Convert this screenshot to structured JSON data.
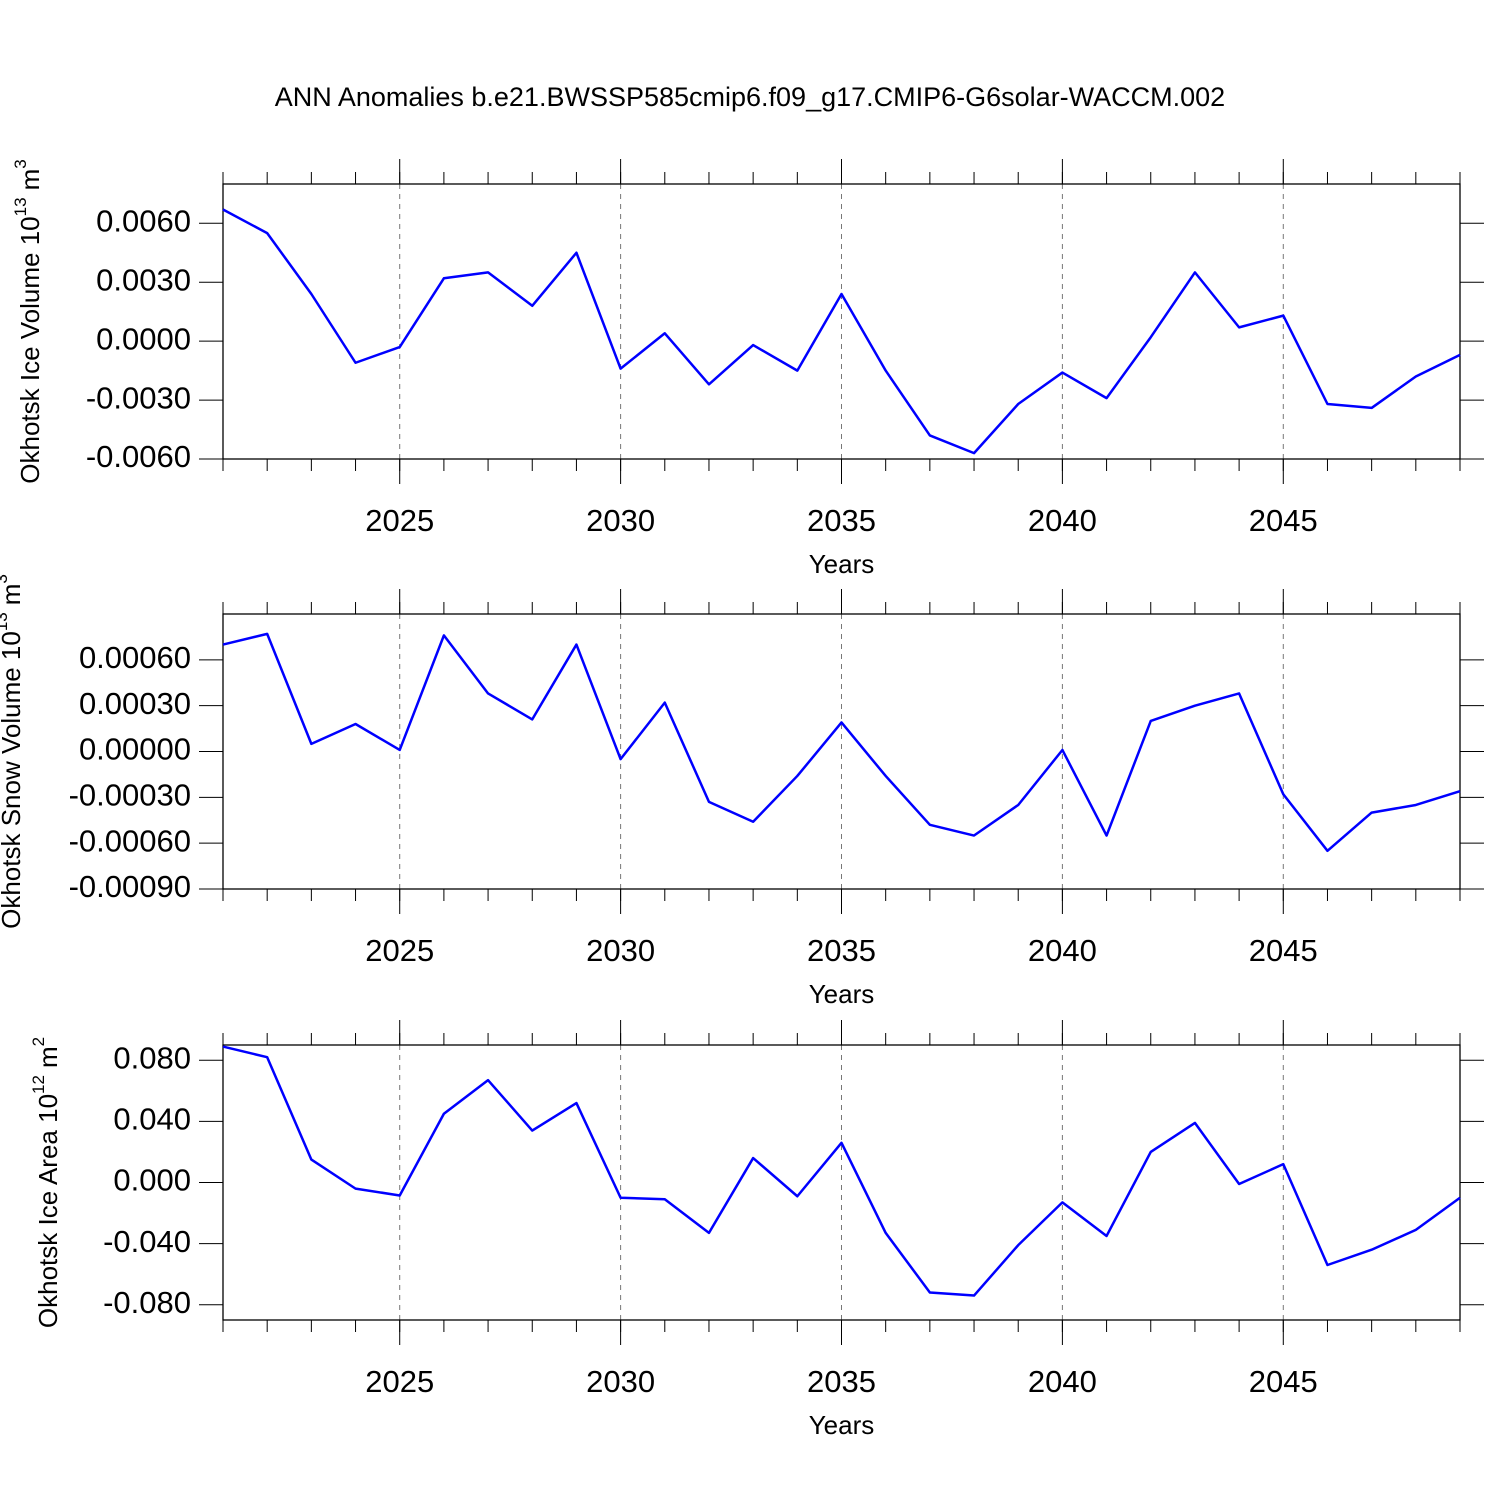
{
  "title": "ANN Anomalies b.e21.BWSSP585cmip6.f09_g17.CMIP6-G6solar-WACCM.002",
  "chart_data": [
    {
      "type": "line",
      "xlabel": "Years",
      "ylabel": {
        "text": "Okhotsk Ice Volume 10",
        "exponent": "13",
        "unit": "m",
        "unit_exponent": "3"
      },
      "x": [
        2021,
        2022,
        2023,
        2024,
        2025,
        2026,
        2027,
        2028,
        2029,
        2030,
        2031,
        2032,
        2033,
        2034,
        2035,
        2036,
        2037,
        2038,
        2039,
        2040,
        2041,
        2042,
        2043,
        2044,
        2045,
        2046,
        2047,
        2048,
        2049
      ],
      "series": [
        {
          "color": "#0000ff",
          "values": [
            0.0067,
            0.0055,
            0.0024,
            -0.0011,
            -0.0003,
            0.0032,
            0.0035,
            0.0018,
            0.0045,
            -0.0014,
            0.0004,
            -0.0022,
            -0.0002,
            -0.0015,
            0.0024,
            -0.0015,
            -0.0048,
            -0.0057,
            -0.0032,
            -0.0016,
            -0.0029,
            0.0002,
            0.0035,
            0.0007,
            0.0013,
            -0.0032,
            -0.0034,
            -0.0018,
            -0.0007
          ]
        }
      ],
      "xlim": [
        2021,
        2049
      ],
      "xticks": [
        2025,
        2030,
        2035,
        2040,
        2045
      ],
      "xgrid": true,
      "ylim": [
        -0.006,
        0.008
      ],
      "yticks": [
        {
          "value": 0.006,
          "label": "0.0060"
        },
        {
          "value": 0.003,
          "label": "0.0030"
        },
        {
          "value": 0,
          "label": "0.0000"
        },
        {
          "value": -0.003,
          "label": "-0.0030"
        },
        {
          "value": -0.006,
          "label": "-0.0060"
        }
      ]
    },
    {
      "type": "line",
      "xlabel": "Years",
      "ylabel": {
        "text": "Okhotsk Snow Volume 10",
        "exponent": "13",
        "unit": "m",
        "unit_exponent": "3"
      },
      "x": [
        2021,
        2022,
        2023,
        2024,
        2025,
        2026,
        2027,
        2028,
        2029,
        2030,
        2031,
        2032,
        2033,
        2034,
        2035,
        2036,
        2037,
        2038,
        2039,
        2040,
        2041,
        2042,
        2043,
        2044,
        2045,
        2046,
        2047,
        2048,
        2049
      ],
      "series": [
        {
          "color": "#0000ff",
          "values": [
            0.0007,
            0.00077,
            5e-05,
            0.00018,
            1e-05,
            0.00076,
            0.00038,
            0.00021,
            0.0007,
            -5e-05,
            0.00032,
            -0.00033,
            -0.00046,
            -0.00016,
            0.00019,
            -0.00016,
            -0.00048,
            -0.00055,
            -0.00035,
            1e-05,
            -0.00055,
            0.0002,
            0.0003,
            0.00038,
            -0.00028,
            -0.00065,
            -0.0004,
            -0.00035,
            -0.00026
          ]
        }
      ],
      "xlim": [
        2021,
        2049
      ],
      "xticks": [
        2025,
        2030,
        2035,
        2040,
        2045
      ],
      "xgrid": true,
      "ylim": [
        -0.0009,
        0.0009
      ],
      "yticks": [
        {
          "value": 0.0006,
          "label": "0.00060"
        },
        {
          "value": 0.0003,
          "label": "0.00030"
        },
        {
          "value": 0,
          "label": "0.00000"
        },
        {
          "value": -0.0003,
          "label": "-0.00030"
        },
        {
          "value": -0.0006,
          "label": "-0.00060"
        },
        {
          "value": -0.0009,
          "label": "-0.00090"
        }
      ]
    },
    {
      "type": "line",
      "xlabel": "Years",
      "ylabel": {
        "text": "Okhotsk Ice Area 10",
        "exponent": "12",
        "unit": "m",
        "unit_exponent": "2"
      },
      "x": [
        2021,
        2022,
        2023,
        2024,
        2025,
        2026,
        2027,
        2028,
        2029,
        2030,
        2031,
        2032,
        2033,
        2034,
        2035,
        2036,
        2037,
        2038,
        2039,
        2040,
        2041,
        2042,
        2043,
        2044,
        2045,
        2046,
        2047,
        2048,
        2049
      ],
      "series": [
        {
          "color": "#0000ff",
          "values": [
            0.089,
            0.082,
            0.015,
            -0.004,
            -0.0085,
            0.045,
            0.067,
            0.034,
            0.052,
            -0.01,
            -0.011,
            -0.033,
            0.016,
            -0.009,
            0.026,
            -0.033,
            -0.072,
            -0.074,
            -0.041,
            -0.013,
            -0.035,
            0.02,
            0.039,
            -0.001,
            0.012,
            -0.054,
            -0.044,
            -0.031,
            -0.01
          ]
        }
      ],
      "xlim": [
        2021,
        2049
      ],
      "xticks": [
        2025,
        2030,
        2035,
        2040,
        2045
      ],
      "xgrid": true,
      "ylim": [
        -0.09,
        0.09
      ],
      "yticks": [
        {
          "value": 0.08,
          "label": "0.080"
        },
        {
          "value": 0.04,
          "label": "0.040"
        },
        {
          "value": 0,
          "label": "0.000"
        },
        {
          "value": -0.04,
          "label": "-0.040"
        },
        {
          "value": -0.08,
          "label": "-0.080"
        }
      ]
    }
  ]
}
